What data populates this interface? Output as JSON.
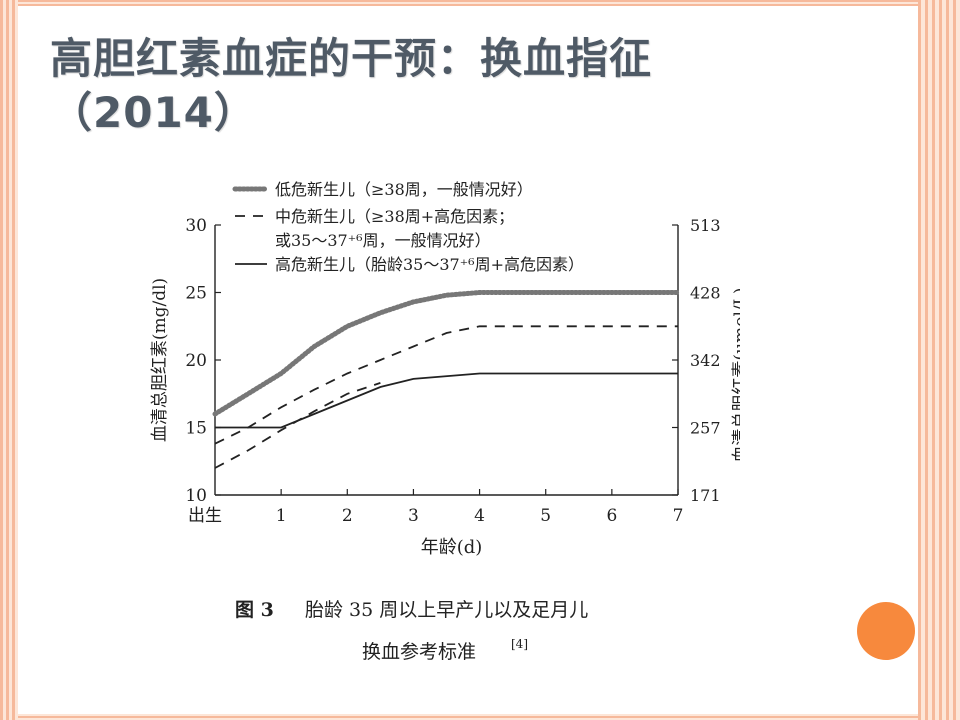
{
  "slide": {
    "title_line1": "高胆红素血症的干预：换血指征",
    "title_line2": "（2014）",
    "accent_color": "#f7893d"
  },
  "chart_data": {
    "type": "line",
    "xlabel": "年龄(d)",
    "ylabel_left": "血清总胆红素(mg/dl)",
    "ylabel_right": "血清总胆红素(μmol/L)",
    "x_ticks": [
      "出生",
      "1",
      "2",
      "3",
      "4",
      "5",
      "6",
      "7"
    ],
    "xlim": [
      0,
      7
    ],
    "ylim": [
      10,
      30
    ],
    "y_ticks_left": [
      "10",
      "15",
      "20",
      "25",
      "30"
    ],
    "y_ticks_right": [
      "171",
      "257",
      "342",
      "428",
      "513"
    ],
    "legend": [
      {
        "label": "低危新生儿（≥38周，一般情况好）",
        "style": "dotted"
      },
      {
        "label": "中危新生儿（≥38周+高危因素；",
        "label_line2": "或35～37⁺⁶周，一般情况好）",
        "style": "dashed"
      },
      {
        "label": "高危新生儿（胎龄35～37⁺⁶周+高危因素）",
        "style": "solid"
      }
    ],
    "series": [
      {
        "name": "低危新生儿",
        "style": "dotted",
        "x": [
          0,
          0.5,
          1,
          1.5,
          2,
          2.5,
          3,
          3.5,
          4,
          5,
          6,
          7
        ],
        "y": [
          16.0,
          17.5,
          19.0,
          21.0,
          22.5,
          23.5,
          24.3,
          24.8,
          25.0,
          25.0,
          25.0,
          25.0
        ]
      },
      {
        "name": "中危新生儿(a)",
        "style": "dashed",
        "x": [
          0,
          0.5,
          1,
          1.5,
          2,
          2.5,
          3,
          3.5,
          4,
          5,
          6,
          7
        ],
        "y": [
          13.8,
          15.0,
          16.5,
          17.8,
          19.0,
          20.0,
          21.0,
          22.0,
          22.5,
          22.5,
          22.5,
          22.5
        ]
      },
      {
        "name": "中危新生儿(b)",
        "style": "dashed",
        "x": [
          0,
          0.5,
          1,
          1.5,
          2,
          2.5
        ],
        "y": [
          12.0,
          13.3,
          14.8,
          16.2,
          17.5,
          18.3
        ]
      },
      {
        "name": "高危新生儿",
        "style": "solid",
        "x": [
          0,
          1,
          1.5,
          2,
          2.5,
          3,
          4,
          5,
          6,
          7
        ],
        "y": [
          15.0,
          15.0,
          16.0,
          17.0,
          18.0,
          18.6,
          19.0,
          19.0,
          19.0,
          19.0
        ]
      }
    ],
    "caption_fig": "图 3",
    "caption_line1": "胎龄 35 周以上早产儿以及足月儿",
    "caption_line2": "换血参考标准",
    "caption_ref": "[4]"
  }
}
